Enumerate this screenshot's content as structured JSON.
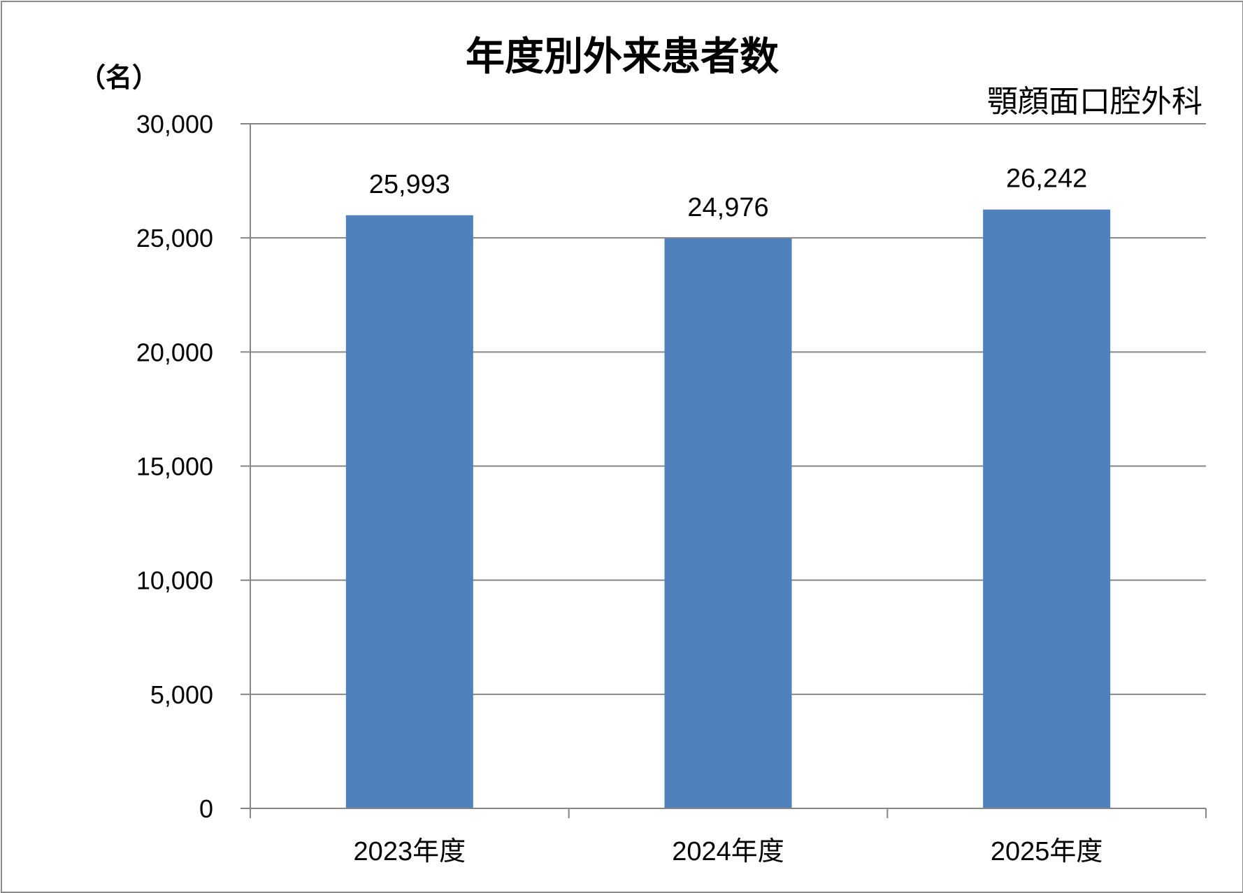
{
  "chart_data": {
    "type": "bar",
    "title": "年度別外来患者数",
    "subtitle": "顎顔面口腔外科",
    "unit_label": "（名）",
    "categories": [
      "2023年度",
      "2024年度",
      "2025年度"
    ],
    "values": [
      25993,
      24976,
      26242
    ],
    "data_labels": [
      "25,993",
      "24,976",
      "26,242"
    ],
    "ylim": [
      0,
      30000
    ],
    "y_ticks": [
      0,
      5000,
      10000,
      15000,
      20000,
      25000,
      30000
    ],
    "y_tick_labels": [
      "0",
      "5,000",
      "10,000",
      "15,000",
      "20,000",
      "25,000",
      "30,000"
    ],
    "grid": true,
    "bar_color": "#4f81bd",
    "grid_color": "#868686",
    "axis_color": "#868686"
  }
}
